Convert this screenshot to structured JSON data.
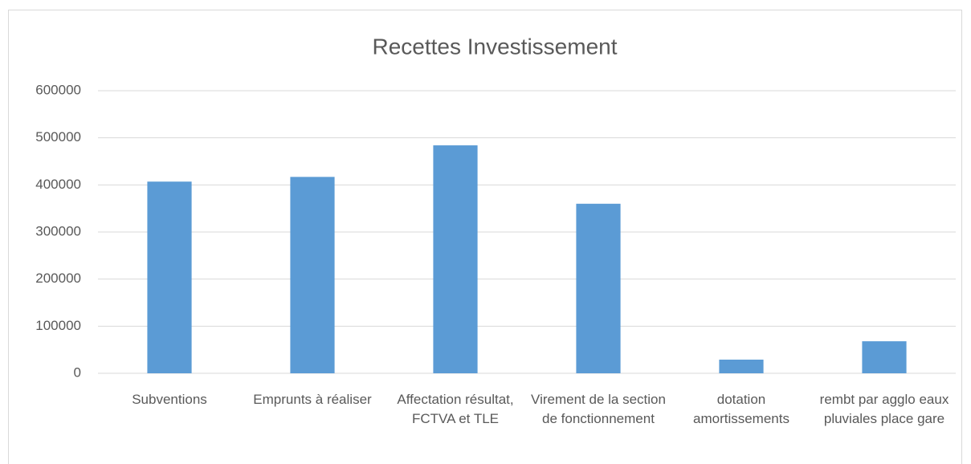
{
  "chart_data": {
    "type": "bar",
    "title": "Recettes Investissement",
    "categories": [
      "Subventions",
      "Emprunts à réaliser",
      "Affectation résultat, FCTVA et TLE",
      "Virement de la section de fonctionnement",
      "dotation amortissements",
      "rembt par agglo eaux pluviales place gare"
    ],
    "values": [
      407000,
      417000,
      484000,
      360000,
      29000,
      68000
    ],
    "color": "#5b9bd5",
    "ylim": [
      0,
      600000
    ],
    "yticks": [
      0,
      100000,
      200000,
      300000,
      400000,
      500000,
      600000
    ],
    "grid": true
  }
}
